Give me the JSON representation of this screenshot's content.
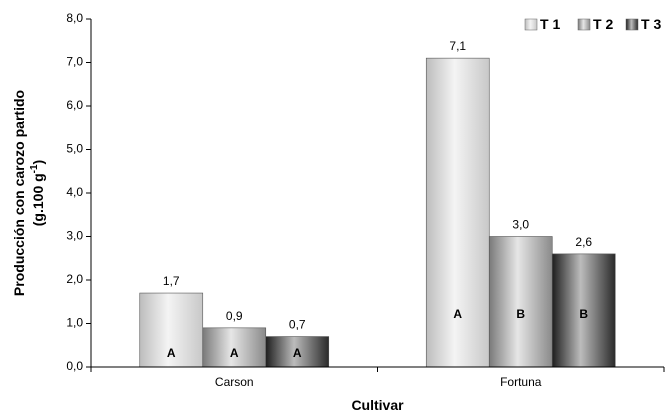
{
  "chart_data": {
    "type": "bar",
    "categories": [
      "Carson",
      "Fortuna"
    ],
    "series": [
      {
        "name": "T 1",
        "values": [
          1.7,
          7.1
        ],
        "value_labels": [
          "1,7",
          "7,1"
        ],
        "group_letters": [
          "A",
          "A"
        ]
      },
      {
        "name": "T 2",
        "values": [
          0.9,
          3.0
        ],
        "value_labels": [
          "0,9",
          "3,0"
        ],
        "group_letters": [
          "A",
          "B"
        ]
      },
      {
        "name": "T 3",
        "values": [
          0.7,
          2.6
        ],
        "value_labels": [
          "0,7",
          "2,6"
        ],
        "group_letters": [
          "A",
          "B"
        ]
      }
    ],
    "xlabel": "Cultivar",
    "ylabel_line1": "Producción con carozo partido",
    "ylabel_line2_prefix": "(g.100 g",
    "ylabel_line2_sup": "-1",
    "ylabel_line2_suffix": ")",
    "ylim": [
      0,
      8
    ],
    "y_ticks": [
      "0,0",
      "1,0",
      "2,0",
      "3,0",
      "4,0",
      "5,0",
      "6,0",
      "7,0",
      "8,0"
    ],
    "grid": false,
    "legend_position": "top-right",
    "series_colors": {
      "T 1": [
        "#bdbdbd",
        "#f4f4f4",
        "#c8c8c8"
      ],
      "T 2": [
        "#7a7a7a",
        "#e6e6e6",
        "#8a8a8a"
      ],
      "T 3": [
        "#1e1e1e",
        "#bcbcbc",
        "#2a2a2a"
      ]
    }
  }
}
